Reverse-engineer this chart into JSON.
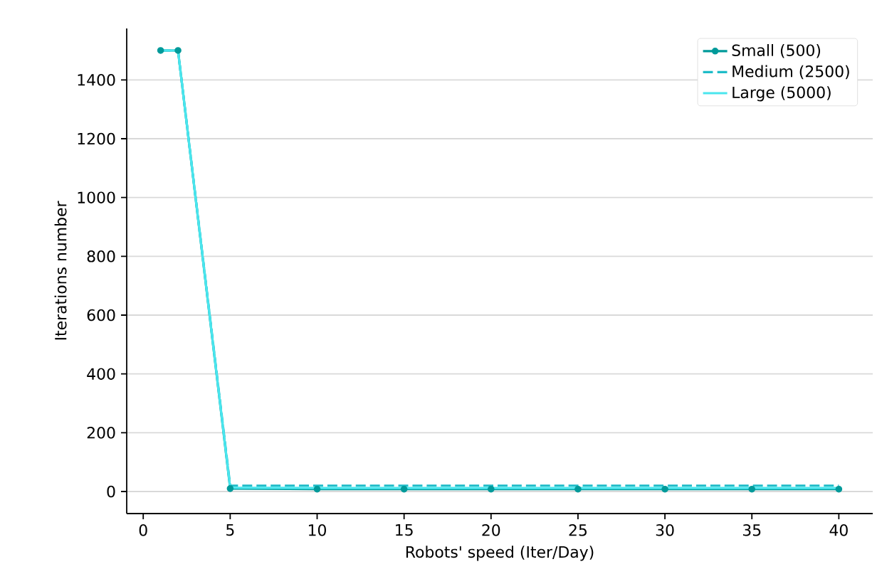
{
  "chart_data": {
    "type": "line",
    "xlabel": "Robots' speed (Iter/Day)",
    "ylabel": "Iterations number",
    "x": [
      1,
      2,
      5,
      10,
      15,
      20,
      25,
      30,
      35,
      40
    ],
    "series": [
      {
        "name": "Small (500)",
        "color": "#009a9a",
        "marker": "circle",
        "line_style": "solid",
        "values": [
          1500,
          1500,
          10,
          8,
          8,
          8,
          8,
          8,
          8,
          8
        ]
      },
      {
        "name": "Medium (2500)",
        "color": "#1fbcc8",
        "marker": "none",
        "line_style": "dashed",
        "values": [
          1500,
          1500,
          20,
          20,
          20,
          20,
          20,
          20,
          20,
          20
        ]
      },
      {
        "name": "Large (5000)",
        "color": "#4ae6ee",
        "marker": "none",
        "line_style": "solid",
        "values": [
          1500,
          1500,
          13,
          12,
          12,
          12,
          12,
          12,
          12,
          12
        ]
      }
    ],
    "xlim": [
      -0.95,
      41.95
    ],
    "ylim": [
      -75,
      1575
    ],
    "xticks": [
      0,
      5,
      10,
      15,
      20,
      25,
      30,
      35,
      40
    ],
    "yticks": [
      0,
      200,
      400,
      600,
      800,
      1000,
      1200,
      1400
    ],
    "grid": "y",
    "legend": "top right"
  }
}
